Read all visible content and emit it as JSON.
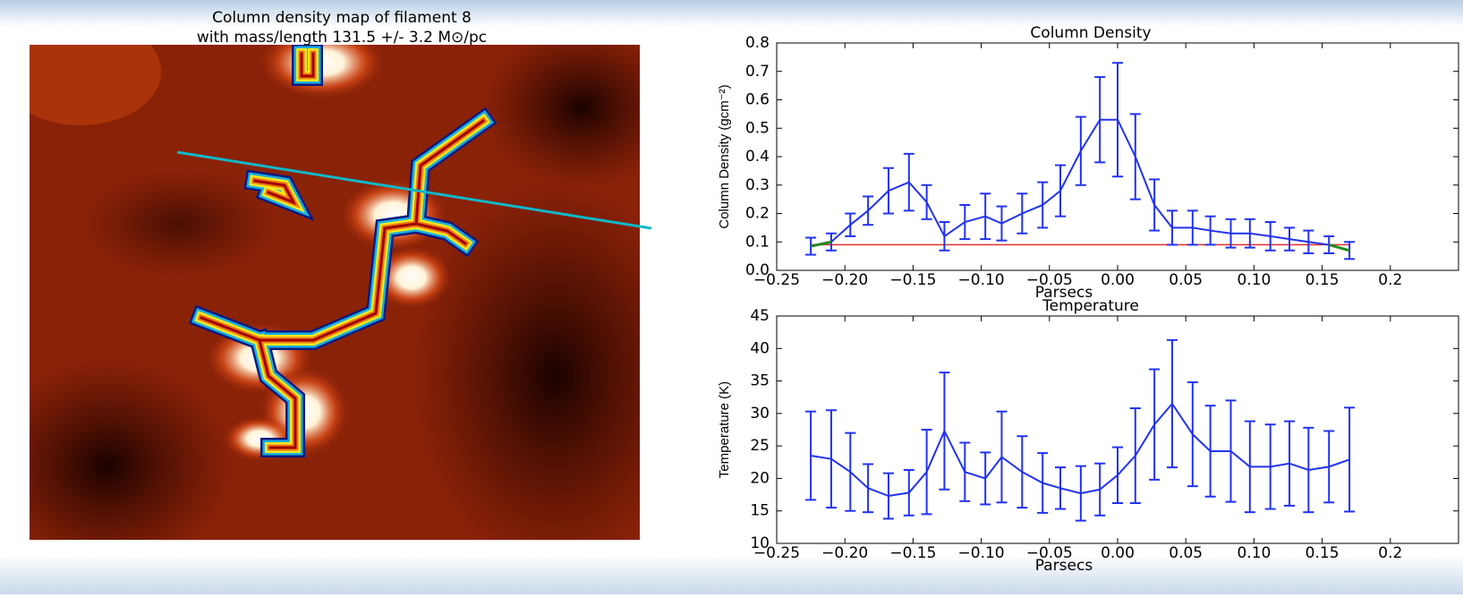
{
  "map": {
    "title": [
      "Column density map of filament 8",
      "with mass/length 131.5 +/- 3.2 M⊙/pc"
    ]
  },
  "chart_data": [
    {
      "type": "line",
      "title": "Column Density",
      "x_label": "Parsecs",
      "y_label": "Column Density (gcm⁻²)",
      "color": "#2233ee",
      "edge_color": "#228822",
      "reference_line": 0.09,
      "reference_color": "#e03030",
      "xlim": [
        -0.25,
        0.25
      ],
      "ylim": [
        0,
        0.8
      ],
      "xticks": [
        {
          "value": -0.25,
          "label": "−0.25"
        },
        {
          "value": -0.2,
          "label": "−0.20"
        },
        {
          "value": -0.15,
          "label": "−0.15"
        },
        {
          "value": -0.1,
          "label": "−0.10"
        },
        {
          "value": -0.05,
          "label": "−0.05"
        },
        {
          "value": 0,
          "label": "0.00"
        },
        {
          "value": 0.05,
          "label": "0.05"
        },
        {
          "value": 0.1,
          "label": "0.10"
        },
        {
          "value": 0.15,
          "label": "0.15"
        },
        {
          "value": 0.2,
          "label": "0.2"
        }
      ],
      "yticks": [
        {
          "value": 0,
          "label": "0.0"
        },
        {
          "value": 0.1,
          "label": "0.1"
        },
        {
          "value": 0.2,
          "label": "0.2"
        },
        {
          "value": 0.3,
          "label": "0.3"
        },
        {
          "value": 0.4,
          "label": "0.4"
        },
        {
          "value": 0.5,
          "label": "0.5"
        },
        {
          "value": 0.6,
          "label": "0.6"
        },
        {
          "value": 0.7,
          "label": "0.7"
        },
        {
          "value": 0.8,
          "label": "0.8"
        }
      ],
      "x": [
        -0.225,
        -0.21,
        -0.196,
        -0.183,
        -0.168,
        -0.153,
        -0.14,
        -0.127,
        -0.112,
        -0.097,
        -0.085,
        -0.07,
        -0.055,
        -0.042,
        -0.027,
        -0.013,
        0.0,
        0.013,
        0.027,
        0.04,
        0.055,
        0.068,
        0.083,
        0.097,
        0.112,
        0.126,
        0.14,
        0.155,
        0.17
      ],
      "values": [
        0.085,
        0.1,
        0.16,
        0.21,
        0.28,
        0.31,
        0.24,
        0.12,
        0.17,
        0.19,
        0.165,
        0.2,
        0.23,
        0.28,
        0.42,
        0.53,
        0.53,
        0.4,
        0.23,
        0.15,
        0.15,
        0.14,
        0.13,
        0.13,
        0.12,
        0.11,
        0.1,
        0.09,
        0.07
      ],
      "errors": [
        0.03,
        0.03,
        0.04,
        0.05,
        0.08,
        0.1,
        0.06,
        0.05,
        0.06,
        0.08,
        0.06,
        0.07,
        0.08,
        0.09,
        0.12,
        0.15,
        0.2,
        0.15,
        0.09,
        0.06,
        0.06,
        0.05,
        0.05,
        0.05,
        0.05,
        0.04,
        0.04,
        0.03,
        0.03
      ]
    },
    {
      "type": "line",
      "title": "Temperature",
      "x_label": "Parsecs",
      "y_label": "Temperature (K)",
      "color": "#2233ee",
      "xlim": [
        -0.25,
        0.25
      ],
      "ylim": [
        10,
        45
      ],
      "xticks": [
        {
          "value": -0.25,
          "label": "−0.25"
        },
        {
          "value": -0.2,
          "label": "−0.20"
        },
        {
          "value": -0.15,
          "label": "−0.15"
        },
        {
          "value": -0.1,
          "label": "−0.10"
        },
        {
          "value": -0.05,
          "label": "−0.05"
        },
        {
          "value": 0,
          "label": "0.00"
        },
        {
          "value": 0.05,
          "label": "0.05"
        },
        {
          "value": 0.1,
          "label": "0.10"
        },
        {
          "value": 0.15,
          "label": "0.15"
        },
        {
          "value": 0.2,
          "label": "0.2"
        }
      ],
      "yticks": [
        10,
        15,
        20,
        25,
        30,
        35,
        40,
        45
      ],
      "x": [
        -0.225,
        -0.21,
        -0.196,
        -0.183,
        -0.168,
        -0.153,
        -0.14,
        -0.127,
        -0.112,
        -0.097,
        -0.085,
        -0.07,
        -0.055,
        -0.042,
        -0.027,
        -0.013,
        0.0,
        0.013,
        0.027,
        0.04,
        0.055,
        0.068,
        0.083,
        0.097,
        0.112,
        0.126,
        0.14,
        0.155,
        0.17
      ],
      "values": [
        23.5,
        23,
        21,
        18.5,
        17.3,
        17.8,
        21,
        27.3,
        21,
        20,
        23.3,
        21,
        19.3,
        18.5,
        17.7,
        18.3,
        20.5,
        23.5,
        28.3,
        31.5,
        26.8,
        24.2,
        24.2,
        21.8,
        21.8,
        22.3,
        21.3,
        21.8,
        22.9
      ],
      "errors": [
        6.8,
        7.5,
        6,
        3.7,
        3.5,
        3.5,
        6.5,
        9,
        4.5,
        4,
        7,
        5.5,
        4.6,
        3.2,
        4.2,
        4,
        4.3,
        7.3,
        8.5,
        9.8,
        8,
        7,
        7.8,
        7,
        6.5,
        6.5,
        6.5,
        5.5,
        8
      ]
    }
  ]
}
